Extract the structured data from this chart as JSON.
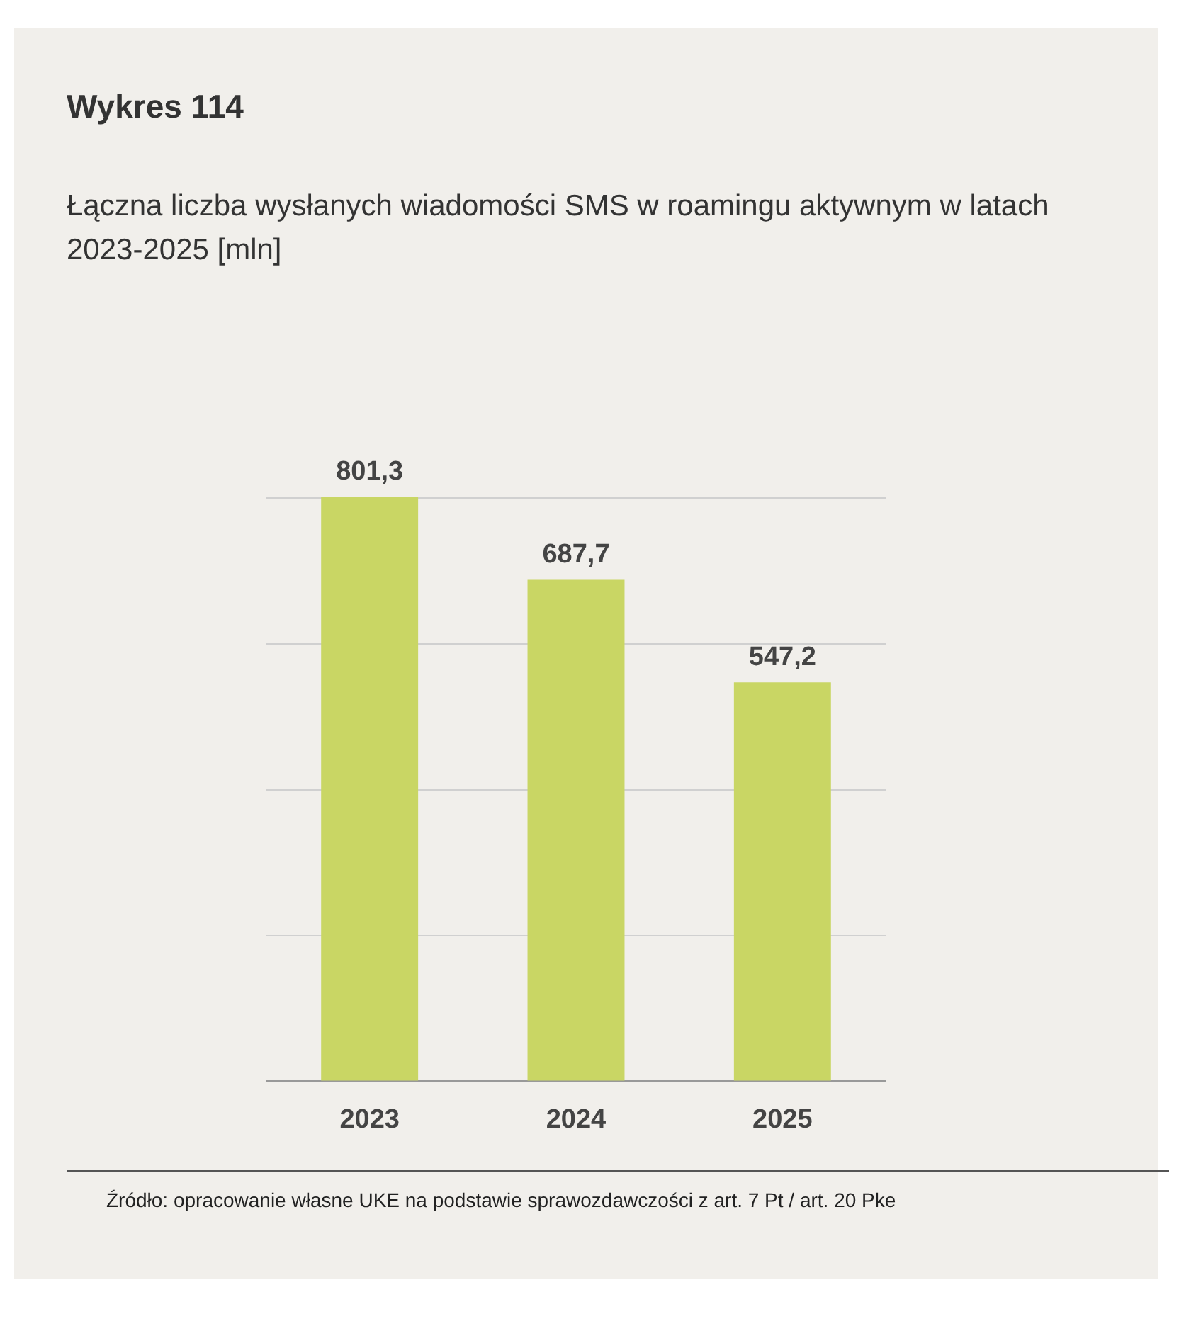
{
  "chart_data": {
    "type": "bar",
    "title": "Wykres 114",
    "subtitle": "Łączna liczba wysłanych wiadomości SMS w roamingu aktywnym w latach 2023-2025 [mln]",
    "categories": [
      "2023",
      "2024",
      "2025"
    ],
    "values": [
      801.3,
      687.7,
      547.2
    ],
    "value_labels": [
      "801,3",
      "687,7",
      "547,2"
    ],
    "color": "#c9d664",
    "yticks": [
      {
        "value": 0,
        "label": null
      },
      {
        "value": 200,
        "label": null
      },
      {
        "value": 400,
        "label": null
      },
      {
        "value": 600,
        "label": null
      },
      {
        "value": 800,
        "label": null
      }
    ],
    "grid": "y",
    "tick_labels": "x",
    "legend": false,
    "annotations": [
      "Źródło: opracowanie własne UKE na podstawie sprawozdawczości z art. 7 Pt / art. 20 Pke"
    ]
  }
}
